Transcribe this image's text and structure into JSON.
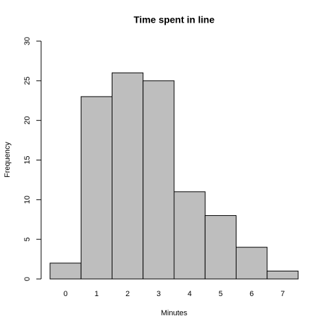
{
  "chart_data": {
    "type": "bar",
    "title": "Time spent in line",
    "x_label": "Minutes",
    "y_label": "Frequency",
    "categories": [
      "0",
      "1",
      "2",
      "3",
      "4",
      "5",
      "6",
      "7"
    ],
    "values": [
      2,
      23,
      26,
      25,
      11,
      8,
      4,
      1
    ],
    "color": "#bebebe",
    "ylim": [
      0,
      30
    ],
    "yticks": [
      0,
      5,
      10,
      15,
      20,
      25,
      30
    ]
  }
}
